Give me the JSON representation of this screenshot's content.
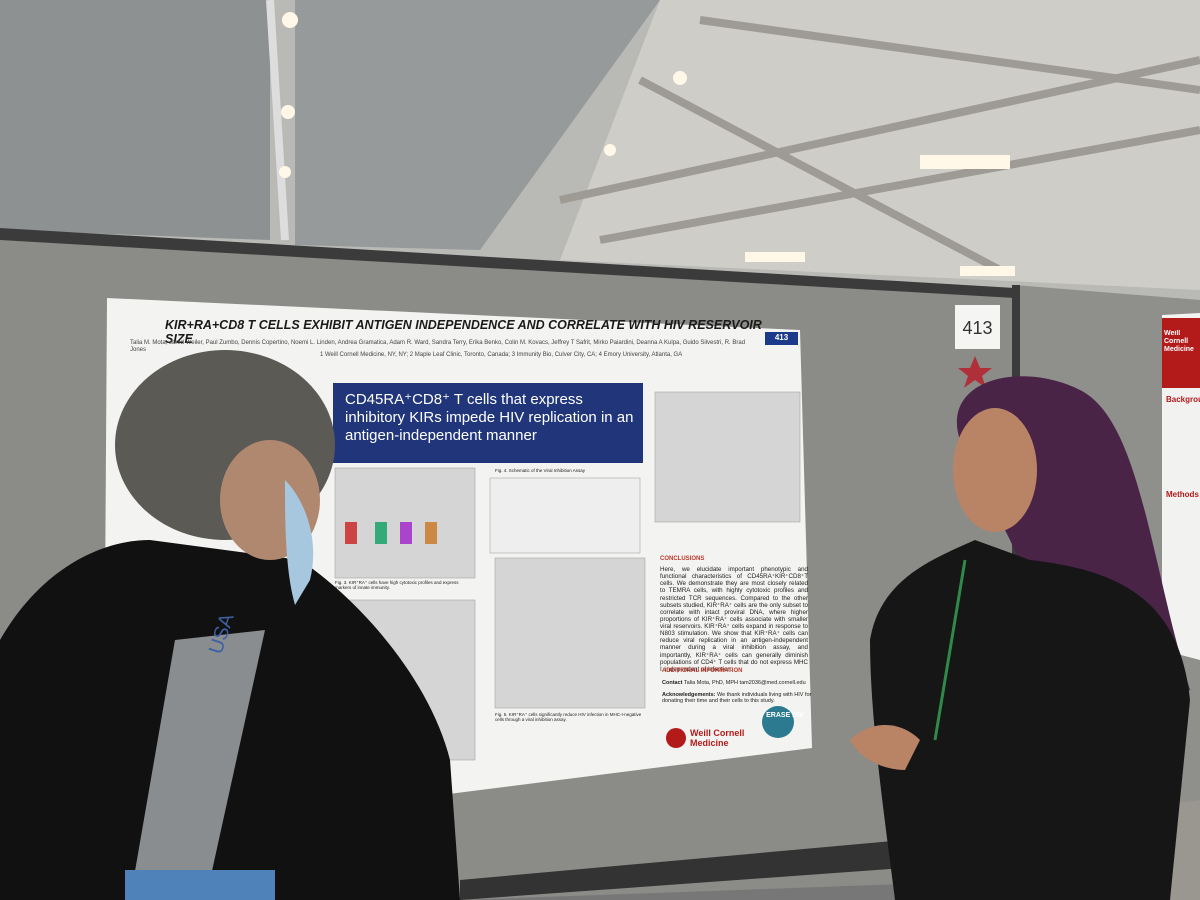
{
  "board_number": "413",
  "poster": {
    "title": "KIR+RA+CD8 T CELLS EXHIBIT ANTIGEN INDEPENDENCE AND CORRELATE WITH HIV RESERVOIR SIZE",
    "number": "413",
    "authors": "Talia M. Mota, Jared Weiler, Paul Zumbo, Dennis Copertino, Noemi L. Linden, Andrea Gramatica, Adam R. Ward, Sandra Terry, Erika Benko, Colin M. Kovacs, Jeffrey T Safrit, Mirko Paiardini, Deanna A Kulpa, Guido Silvestri, R. Brad Jones",
    "affiliations": "1 Weill Cornell Medicine, NY, NY; 2 Maple Leaf Clinic, Toronto, Canada; 3 Immunity Bio, Culver City, CA; 4 Emory University, Atlanta, GA",
    "banner": "CD45RA⁺CD8⁺ T cells that express inhibitory KIRs impede HIV replication in an antigen-independent manner",
    "figure_captions": [
      "Fig. 4. Schematic of the Viral Inhibition Assay",
      "Fig. 3. KIR⁺RA⁺ cells have high cytotoxic profiles and express markers of innate immunity.",
      "Fig. 5. KIR⁺RA⁺ cells significantly reduce HIV infection in MHC-I-negative cells through a viral inhibition assay."
    ],
    "conclusions": {
      "heading": "CONCLUSIONS",
      "text": "Here, we elucidate important phenotypic and functional characteristics of CD45RA⁺KIR⁺CD8⁺T cells. We demonstrate they are most closely related to TEMRA cells, with highly cytotoxic profiles and restricted TCR sequences. Compared to the other subsets studied, KIR⁺RA⁺ cells are the only subset to correlate with intact proviral DNA, where higher proportions of KIR⁺RA⁺ cells associate with smaller viral reservoirs. KIR⁺RA⁺ cells expand in response to N803 stimulation. We show that KIR⁺RA⁺ cells can reduce viral replication in an antigen-independent manner during a viral inhibition assay, and importantly, KIR⁺RA⁺ cells can generally diminish populations of CD4⁺ T cells that do not express MHC I, independent of infection."
    },
    "additional_info": {
      "heading": "ADDITIONAL INFORMATION",
      "contact_label": "Contact",
      "contact": "Talia Mota, PhD, MPH tam2036@med.cornell.edu",
      "ack_label": "Acknowledgements:",
      "ack": "We thank individuals living with HIV for donating their time and their cells to this study."
    },
    "logos": [
      "Weill Cornell Medicine",
      "ERASE HIV"
    ]
  },
  "neighbor_poster": {
    "header": "Weill Cornell Medicine",
    "sections": [
      "Background",
      "Methods"
    ]
  },
  "bag_text": "USA"
}
